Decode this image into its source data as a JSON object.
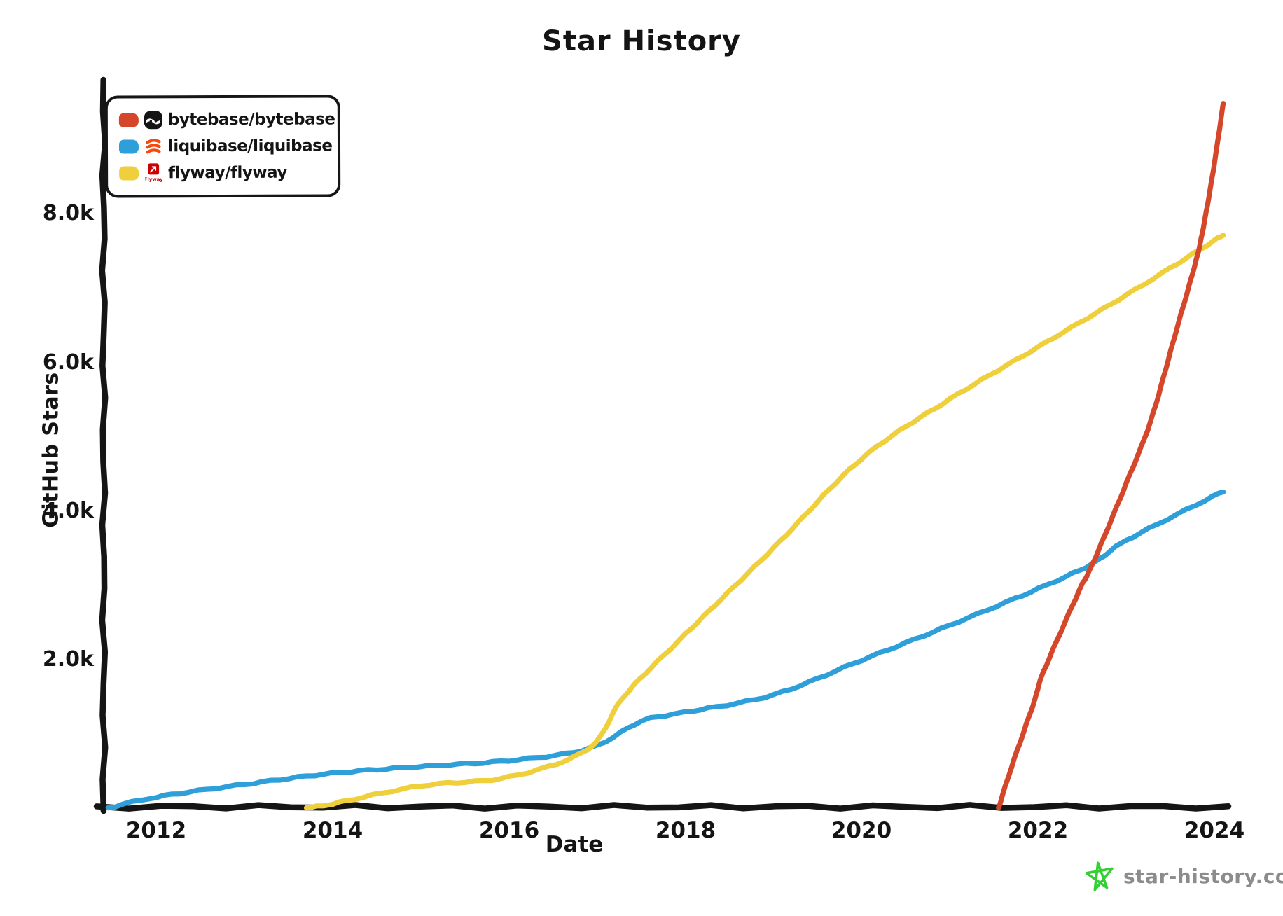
{
  "title": "Star History",
  "legend": [
    {
      "repo": "bytebase/bytebase",
      "color": "#d4472a",
      "logo": "bytebase-logo"
    },
    {
      "repo": "liquibase/liquibase",
      "color": "#2e9fd9",
      "logo": "liquibase-logo"
    },
    {
      "repo": "flyway/flyway",
      "color": "#efd03c",
      "logo": "flyway-logo"
    }
  ],
  "footer": {
    "brand": "star-history.com",
    "icon": "green-star-icon",
    "icon_color": "#33cf33",
    "text_color": "#8c8c8c"
  },
  "chart_data": {
    "type": "line",
    "title": "Star History",
    "xlabel": "Date",
    "ylabel": "GitHub Stars",
    "grid": false,
    "legend_position": "top-left",
    "x_domain": [
      2011.4,
      2024.11
    ],
    "y_domain": [
      0,
      9736
    ],
    "x_tick_labels": [
      "2012",
      "2014",
      "2016",
      "2018",
      "2020",
      "2022",
      "2024"
    ],
    "x_tick_values": [
      2012,
      2014,
      2016,
      2018,
      2020,
      2022,
      2024
    ],
    "y_tick_labels": [
      "8.0k",
      "6.0k",
      "4.0k",
      "2.0k"
    ],
    "y_tick_values": [
      8000,
      6000,
      4000,
      2000
    ],
    "series": [
      {
        "name": "bytebase/bytebase",
        "color": "#d4472a",
        "points": [
          [
            2021.55,
            0
          ],
          [
            2021.7,
            560
          ],
          [
            2021.96,
            1450
          ],
          [
            2022.06,
            1830
          ],
          [
            2022.46,
            2910
          ],
          [
            2022.62,
            3290
          ],
          [
            2023.0,
            4370
          ],
          [
            2023.28,
            5220
          ],
          [
            2023.55,
            6350
          ],
          [
            2023.73,
            7100
          ],
          [
            2023.82,
            7500
          ],
          [
            2023.89,
            7910
          ],
          [
            2023.99,
            8600
          ],
          [
            2024.1,
            9480
          ]
        ]
      },
      {
        "name": "liquibase/liquibase",
        "color": "#2e9fd9",
        "points": [
          [
            2011.45,
            0
          ],
          [
            2012,
            150
          ],
          [
            2013,
            320
          ],
          [
            2014,
            470
          ],
          [
            2015,
            560
          ],
          [
            2016,
            640
          ],
          [
            2016.9,
            800
          ],
          [
            2017.5,
            1170
          ],
          [
            2018,
            1290
          ],
          [
            2019,
            1525
          ],
          [
            2020,
            1990
          ],
          [
            2021,
            2460
          ],
          [
            2022,
            2950
          ],
          [
            2022.62,
            3290
          ],
          [
            2023,
            3600
          ],
          [
            2024.1,
            4260
          ]
        ]
      },
      {
        "name": "flyway/flyway",
        "color": "#efd03c",
        "points": [
          [
            2013.7,
            0
          ],
          [
            2014,
            60
          ],
          [
            2015,
            300
          ],
          [
            2016,
            420
          ],
          [
            2016.9,
            800
          ],
          [
            2017.3,
            1500
          ],
          [
            2018,
            2340
          ],
          [
            2019,
            3500
          ],
          [
            2020,
            4700
          ],
          [
            2021,
            5500
          ],
          [
            2022,
            6200
          ],
          [
            2023,
            6900
          ],
          [
            2023.82,
            7500
          ],
          [
            2024.1,
            7710
          ]
        ]
      }
    ]
  }
}
